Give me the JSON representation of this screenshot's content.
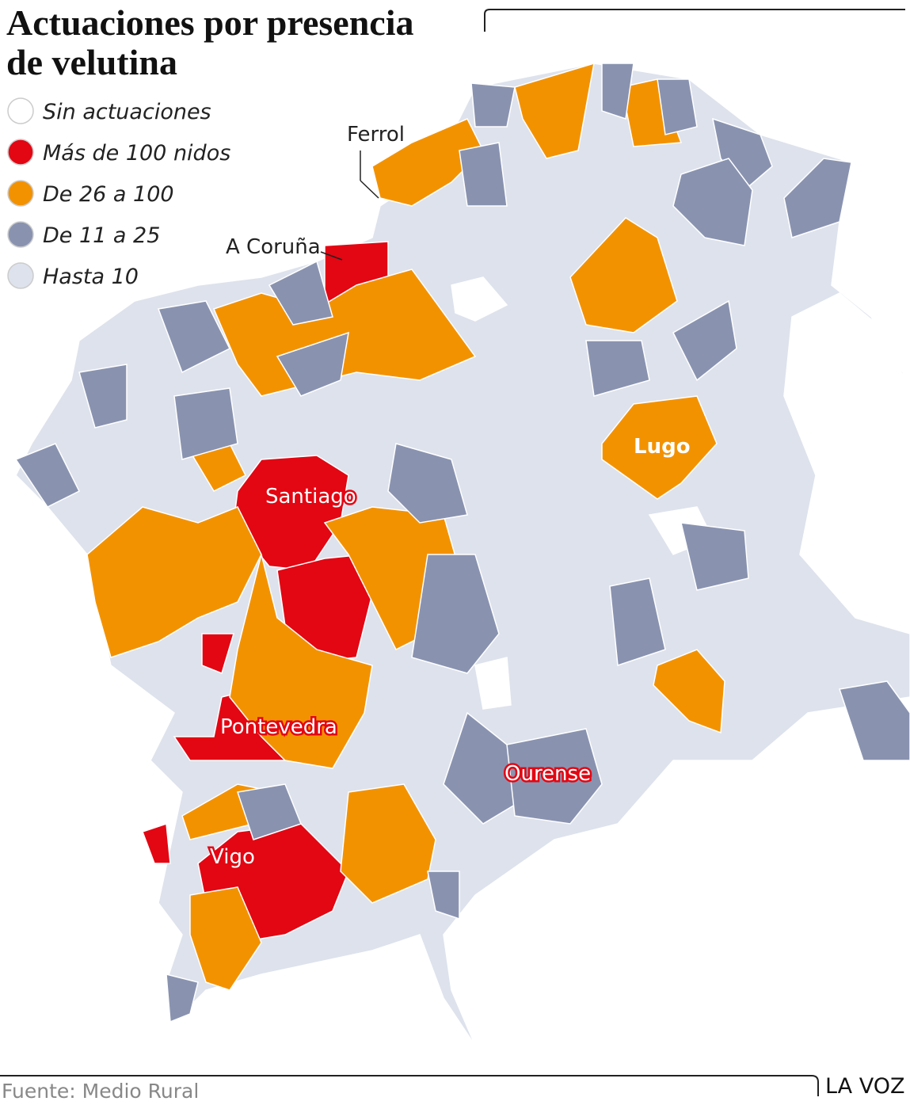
{
  "title_lines": [
    "Actuaciones por presencia",
    "de velutina"
  ],
  "legend": [
    {
      "label": "Sin actuaciones",
      "color": "#ffffff"
    },
    {
      "label": "Más de 100 nidos",
      "color": "#e30613"
    },
    {
      "label": "De 26 a 100",
      "color": "#f39200"
    },
    {
      "label": "De 11 a 25",
      "color": "#8993b0"
    },
    {
      "label": "Hasta 10",
      "color": "#dde2ec"
    }
  ],
  "places": [
    {
      "label": "Ferrol"
    },
    {
      "label": "A Coruña"
    },
    {
      "label": "Santiago"
    },
    {
      "label": "Lugo"
    },
    {
      "label": "Pontevedra"
    },
    {
      "label": "Ourense"
    },
    {
      "label": "Vigo"
    }
  ],
  "source": "Fuente: Medio Rural",
  "brand": "LA VOZ"
}
